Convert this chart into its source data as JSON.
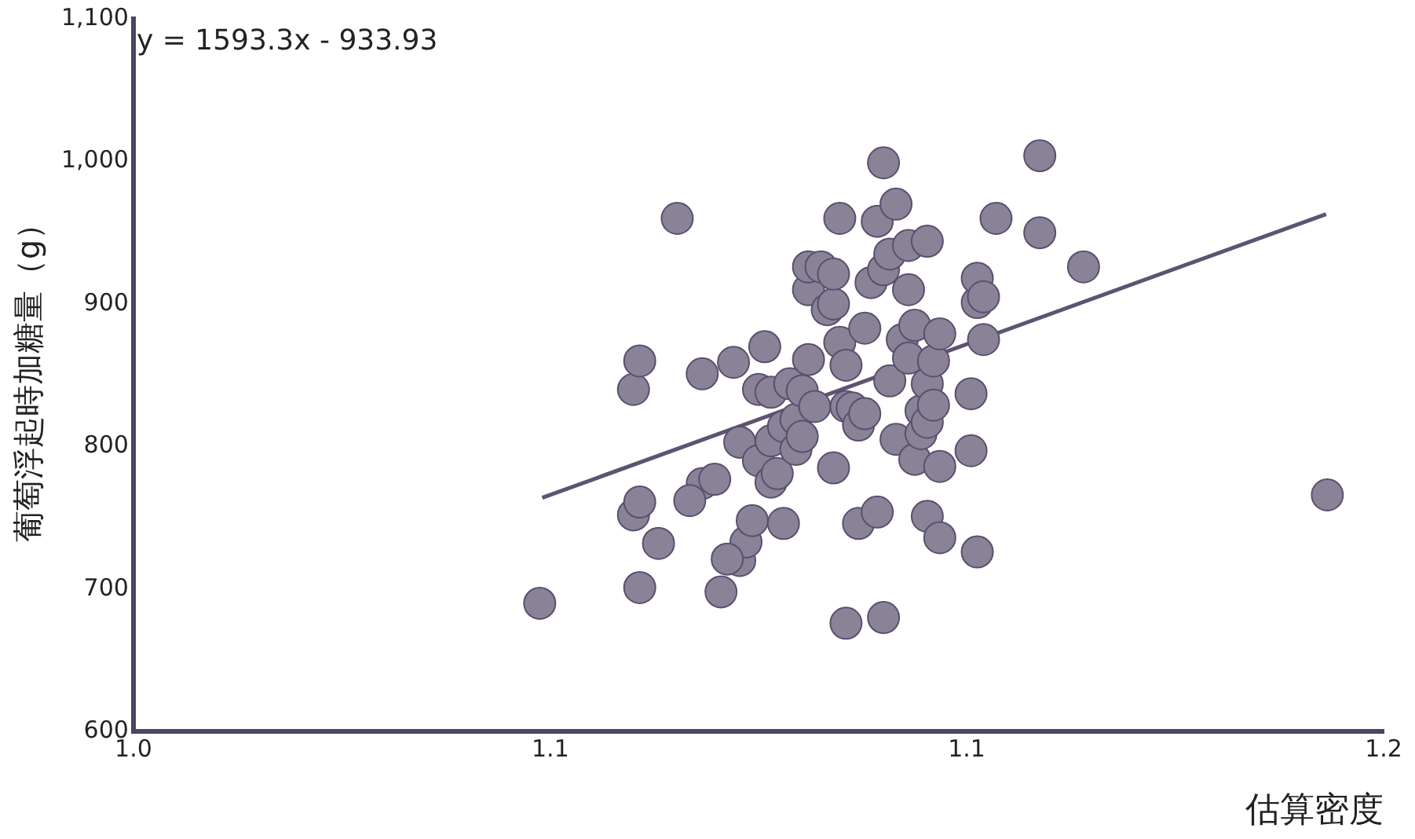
{
  "chart_data": {
    "type": "scatter",
    "xlabel": "估算密度",
    "ylabel": "葡萄浮起時加糖量（g）",
    "annotations": [
      "y = 1593.3x - 933.93"
    ],
    "xlim": [
      1.0,
      1.2
    ],
    "xticks": [
      {
        "value": 1.0,
        "label": "1.0"
      },
      {
        "value": 1.0667,
        "label": "1.1"
      },
      {
        "value": 1.1333,
        "label": "1.1"
      },
      {
        "value": 1.2,
        "label": "1.2"
      }
    ],
    "ylim": [
      600,
      1100
    ],
    "yticks": [
      600,
      700,
      800,
      900,
      {
        "value": 1000,
        "label": "1,000"
      },
      {
        "value": 1100,
        "label": "1,100"
      }
    ],
    "grid": false,
    "legend": false,
    "series": [
      {
        "marker": "circle",
        "color": "#8a8296",
        "x": [
          1.065,
          1.08,
          1.081,
          1.087,
          1.081,
          1.08,
          1.081,
          1.084,
          1.091,
          1.089,
          1.093,
          1.091,
          1.094,
          1.096,
          1.097,
          1.097,
          1.098,
          1.095,
          1.099,
          1.1,
          1.1,
          1.101,
          1.102,
          1.102,
          1.102,
          1.103,
          1.104,
          1.104,
          1.105,
          1.106,
          1.106,
          1.107,
          1.107,
          1.108,
          1.108,
          1.108,
          1.109,
          1.11,
          1.111,
          1.112,
          1.112,
          1.112,
          1.113,
          1.113,
          1.114,
          1.114,
          1.114,
          1.115,
          1.116,
          1.116,
          1.117,
          1.117,
          1.118,
          1.119,
          1.119,
          1.12,
          1.12,
          1.12,
          1.121,
          1.121,
          1.122,
          1.122,
          1.123,
          1.124,
          1.124,
          1.124,
          1.125,
          1.125,
          1.126,
          1.126,
          1.127,
          1.127,
          1.127,
          1.127,
          1.128,
          1.128,
          1.129,
          1.129,
          1.129,
          1.134,
          1.134,
          1.135,
          1.135,
          1.135,
          1.136,
          1.136,
          1.138,
          1.145,
          1.145,
          1.152,
          1.191
        ],
        "values": [
          690,
          840,
          860,
          960,
          701,
          752,
          761,
          732,
          774,
          762,
          777,
          851,
          698,
          859,
          803,
          720,
          733,
          721,
          748,
          840,
          790,
          870,
          775,
          804,
          838,
          781,
          814,
          746,
          844,
          798,
          819,
          807,
          839,
          910,
          926,
          861,
          828,
          926,
          896,
          785,
          900,
          921,
          873,
          960,
          676,
          828,
          857,
          827,
          815,
          746,
          823,
          883,
          915,
          754,
          958,
          924,
          680,
          999,
          935,
          846,
          805,
          970,
          875,
          862,
          941,
          910,
          791,
          885,
          825,
          809,
          817,
          844,
          751,
          944,
          860,
          829,
          786,
          736,
          879,
          837,
          797,
          901,
          918,
          726,
          905,
          875,
          960,
          950,
          1004,
          926,
          766
        ]
      },
      {
        "type": "line",
        "marker": "none",
        "color": "#5c5470",
        "x": [
          1.0654,
          1.1908
        ],
        "values": [
          764,
          963
        ]
      }
    ]
  }
}
